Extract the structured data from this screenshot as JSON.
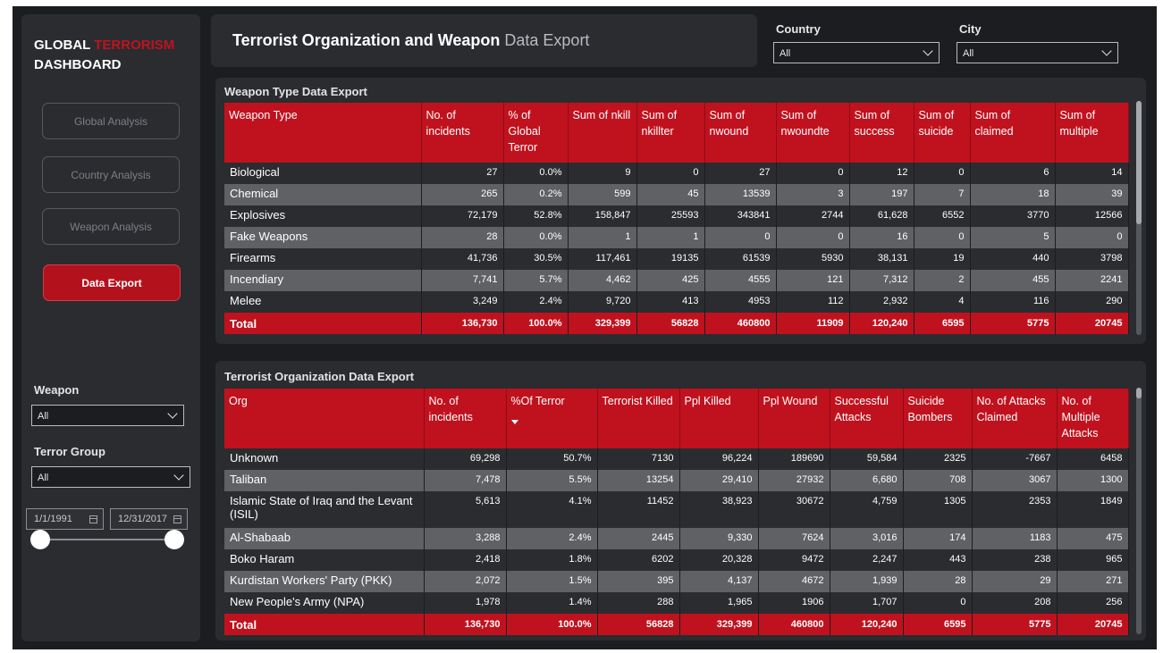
{
  "brand": {
    "line1_white": "GLOBAL",
    "line1_red": "TERRORISM",
    "line2": "DASHBOARD"
  },
  "nav": [
    {
      "label": "Global Analysis",
      "active": false
    },
    {
      "label": "Country Analysis",
      "active": false
    },
    {
      "label": "Weapon Analysis",
      "active": false
    },
    {
      "label": "Data Export",
      "active": true
    }
  ],
  "filters": {
    "weapon": {
      "label": "Weapon",
      "value": "All"
    },
    "terror_group": {
      "label": "Terror Group",
      "value": "All"
    },
    "date_start": "1/1/1991",
    "date_end": "12/31/2017",
    "country": {
      "label": "Country",
      "value": "All"
    },
    "city": {
      "label": "City",
      "value": "All"
    }
  },
  "header": {
    "title_bold": "Terrorist Organization and Weapon",
    "title_light": "Data Export"
  },
  "weapon_table": {
    "title": "Weapon Type Data Export",
    "headers": [
      "Weapon Type",
      "No. of incidents",
      "% of Global Terror",
      "Sum of nkill",
      "Sum of nkillter",
      "Sum of nwound",
      "Sum of nwoundte",
      "Sum of success",
      "Sum of suicide",
      "Sum of claimed",
      "Sum of multiple"
    ],
    "rows": [
      [
        "Biological",
        "27",
        "0.0%",
        "9",
        "0",
        "27",
        "0",
        "12",
        "0",
        "6",
        "14"
      ],
      [
        "Chemical",
        "265",
        "0.2%",
        "599",
        "45",
        "13539",
        "3",
        "197",
        "7",
        "18",
        "39"
      ],
      [
        "Explosives",
        "72,179",
        "52.8%",
        "158,847",
        "25593",
        "343841",
        "2744",
        "61,628",
        "6552",
        "3770",
        "12566"
      ],
      [
        "Fake Weapons",
        "28",
        "0.0%",
        "1",
        "1",
        "0",
        "0",
        "16",
        "0",
        "5",
        "0"
      ],
      [
        "Firearms",
        "41,736",
        "30.5%",
        "117,461",
        "19135",
        "61539",
        "5930",
        "38,131",
        "19",
        "440",
        "3798"
      ],
      [
        "Incendiary",
        "7,741",
        "5.7%",
        "4,462",
        "425",
        "4555",
        "121",
        "7,312",
        "2",
        "455",
        "2241"
      ],
      [
        "Melee",
        "3,249",
        "2.4%",
        "9,720",
        "413",
        "4953",
        "112",
        "2,932",
        "4",
        "116",
        "290"
      ]
    ],
    "total": [
      "Total",
      "136,730",
      "100.0%",
      "329,399",
      "56828",
      "460800",
      "11909",
      "120,240",
      "6595",
      "5775",
      "20745"
    ]
  },
  "org_table": {
    "title": "Terrorist Organization Data Export",
    "headers": [
      "Org",
      "No. of incidents",
      "%Of Terror",
      "Terrorist Killed",
      "Ppl Killed",
      "Ppl Wound",
      "Successful Attacks",
      "Suicide Bombers",
      "No. of Attacks Claimed",
      "No. of Multiple Attacks"
    ],
    "rows": [
      [
        "Unknown",
        "69,298",
        "50.7%",
        "7130",
        "96,224",
        "189690",
        "59,584",
        "2325",
        "-7667",
        "6458"
      ],
      [
        "Taliban",
        "7,478",
        "5.5%",
        "13254",
        "29,410",
        "27932",
        "6,680",
        "708",
        "3067",
        "1300"
      ],
      [
        "Islamic State of Iraq and the Levant (ISIL)",
        "5,613",
        "4.1%",
        "11452",
        "38,923",
        "30672",
        "4,759",
        "1305",
        "2353",
        "1849"
      ],
      [
        "Al-Shabaab",
        "3,288",
        "2.4%",
        "2445",
        "9,330",
        "7624",
        "3,016",
        "174",
        "1183",
        "475"
      ],
      [
        "Boko Haram",
        "2,418",
        "1.8%",
        "6202",
        "20,328",
        "9472",
        "2,247",
        "443",
        "238",
        "965"
      ],
      [
        "Kurdistan Workers' Party (PKK)",
        "2,072",
        "1.5%",
        "395",
        "4,137",
        "4672",
        "1,939",
        "28",
        "29",
        "271"
      ],
      [
        "New People's Army (NPA)",
        "1,978",
        "1.4%",
        "288",
        "1,965",
        "1906",
        "1,707",
        "0",
        "208",
        "256"
      ]
    ],
    "total": [
      "Total",
      "136,730",
      "100.0%",
      "56828",
      "329,399",
      "460800",
      "120,240",
      "6595",
      "5775",
      "20745"
    ]
  },
  "colors": {
    "accent_red": "#c0121e",
    "background": "#1c1d20",
    "card": "#2a2c30",
    "row_alt": "#5f6165"
  }
}
